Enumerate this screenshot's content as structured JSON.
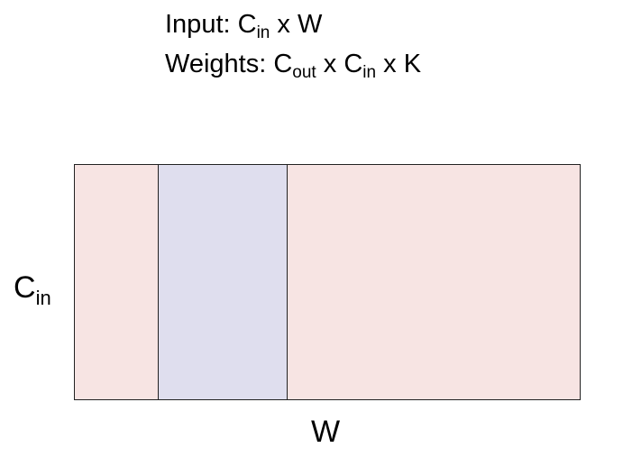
{
  "header": {
    "input_line": {
      "prefix": "Input: C",
      "sub": "in",
      "suffix": " x W"
    },
    "weights_line": {
      "prefix": "Weights: C",
      "sub1": "out",
      "middle": " x C",
      "sub2": "in",
      "suffix": " x K"
    }
  },
  "diagram": {
    "y_axis_label": {
      "main": "C",
      "sub": "in"
    },
    "x_axis_label": "W",
    "colors": {
      "input_fill": "#f7e4e3",
      "kernel_fill": "#dfdeee",
      "border": "#222222"
    }
  }
}
